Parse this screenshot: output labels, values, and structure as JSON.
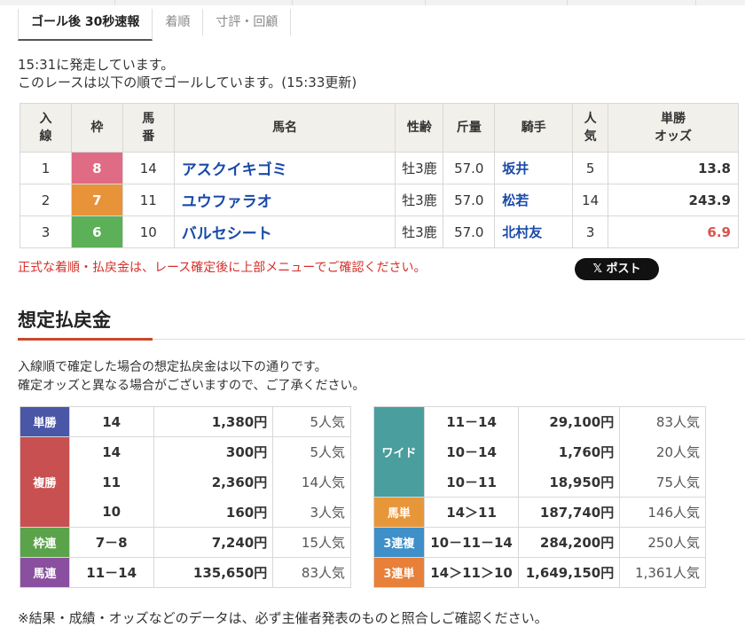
{
  "tabs": [
    {
      "label": "ゴール後 30秒速報",
      "active": true
    },
    {
      "label": "着順",
      "active": false
    },
    {
      "label": "寸評・回顧",
      "active": false
    }
  ],
  "status": {
    "line1": "15:31に発走しています。",
    "line2": "このレースは以下の順でゴールしています。(15:33更新)"
  },
  "result_table": {
    "headers": {
      "place": "入\n線",
      "frame": "枠",
      "number": "馬\n番",
      "name": "馬名",
      "sex_age": "性齢",
      "weight": "斤量",
      "jockey": "騎手",
      "popularity": "人\n気",
      "odds": "単勝\nオッズ"
    },
    "rows": [
      {
        "place": "1",
        "frame": "8",
        "number": "14",
        "name": "アスクイキゴミ",
        "sex_age": "牡3鹿",
        "weight": "57.0",
        "jockey": "坂井",
        "popularity": "5",
        "odds": "13.8",
        "frame_color": "#e06b85"
      },
      {
        "place": "2",
        "frame": "7",
        "number": "11",
        "name": "ユウファラオ",
        "sex_age": "牡3鹿",
        "weight": "57.0",
        "jockey": "松若",
        "popularity": "14",
        "odds": "243.9",
        "frame_color": "#e8923a"
      },
      {
        "place": "3",
        "frame": "6",
        "number": "10",
        "name": "バルセシート",
        "sex_age": "牡3鹿",
        "weight": "57.0",
        "jockey": "北村友",
        "popularity": "3",
        "odds": "6.9",
        "frame_color": "#5bb058"
      }
    ]
  },
  "notice": "正式な着順・払戻金は、レース確定後に上部メニューでご確認ください。",
  "x_post_button": "𝕏 ポスト",
  "payout_section": {
    "title": "想定払戻金",
    "desc_line1": "入線順で確定した場合の想定払戻金は以下の通りです。",
    "desc_line2": "確定オッズと異なる場合がございますので、ご了承ください。"
  },
  "payouts_left": {
    "tansho": {
      "label": "単勝",
      "rows": [
        {
          "comb": "14",
          "yen": "1,380円",
          "pop": "5人気"
        }
      ]
    },
    "fukusho": {
      "label": "複勝",
      "rows": [
        {
          "comb": "14",
          "yen": "300円",
          "pop": "5人気"
        },
        {
          "comb": "11",
          "yen": "2,360円",
          "pop": "14人気"
        },
        {
          "comb": "10",
          "yen": "160円",
          "pop": "3人気"
        }
      ]
    },
    "wakuren": {
      "label": "枠連",
      "rows": [
        {
          "comb": "7－8",
          "yen": "7,240円",
          "pop": "15人気"
        }
      ]
    },
    "umaren": {
      "label": "馬連",
      "rows": [
        {
          "comb": "11－14",
          "yen": "135,650円",
          "pop": "83人気"
        }
      ]
    }
  },
  "payouts_right": {
    "wide": {
      "label": "ワイド",
      "rows": [
        {
          "comb": "11－14",
          "yen": "29,100円",
          "pop": "83人気"
        },
        {
          "comb": "10－14",
          "yen": "1,760円",
          "pop": "20人気"
        },
        {
          "comb": "10－11",
          "yen": "18,950円",
          "pop": "75人気"
        }
      ]
    },
    "umatan": {
      "label": "馬単",
      "rows": [
        {
          "comb": "14＞11",
          "yen": "187,740円",
          "pop": "146人気"
        }
      ]
    },
    "sanrenpuku": {
      "label": "3連複",
      "rows": [
        {
          "comb": "10－11－14",
          "yen": "284,200円",
          "pop": "250人気"
        }
      ]
    },
    "sanrentan": {
      "label": "3連単",
      "rows": [
        {
          "comb": "14＞11＞10",
          "yen": "1,649,150円",
          "pop": "1,361人気"
        }
      ]
    }
  },
  "footnote": "※結果・成績・オッズなどのデータは、必ず主催者発表のものと照合しご確認ください。"
}
